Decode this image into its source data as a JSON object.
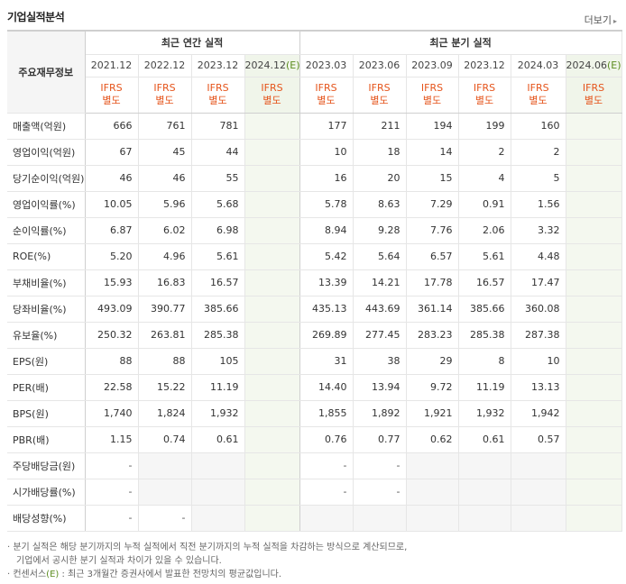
{
  "header": {
    "title": "기업실적분석",
    "more_label": "더보기"
  },
  "table": {
    "row_header": "주요재무정보",
    "annual_group": "최근 연간 실적",
    "quarter_group": "최근 분기 실적",
    "annual_periods": [
      "2021.12",
      "2022.12",
      "2023.12",
      "2024.12"
    ],
    "quarter_periods": [
      "2023.03",
      "2023.06",
      "2023.09",
      "2023.12",
      "2024.03",
      "2024.06"
    ],
    "estimate_mark": "(E)",
    "ifrs_top": "IFRS",
    "ifrs_bottom": "별도",
    "rows": [
      {
        "label": "매출액(억원)",
        "annual": [
          "666",
          "761",
          "781"
        ],
        "quarter": [
          "177",
          "211",
          "194",
          "199",
          "160"
        ]
      },
      {
        "label": "영업이익(억원)",
        "annual": [
          "67",
          "45",
          "44"
        ],
        "quarter": [
          "10",
          "18",
          "14",
          "2",
          "2"
        ]
      },
      {
        "label": "당기순이익(억원)",
        "annual": [
          "46",
          "46",
          "55"
        ],
        "quarter": [
          "16",
          "20",
          "15",
          "4",
          "5"
        ]
      },
      {
        "label": "영업이익률(%)",
        "annual": [
          "10.05",
          "5.96",
          "5.68"
        ],
        "quarter": [
          "5.78",
          "8.63",
          "7.29",
          "0.91",
          "1.56"
        ]
      },
      {
        "label": "순이익률(%)",
        "annual": [
          "6.87",
          "6.02",
          "6.98"
        ],
        "quarter": [
          "8.94",
          "9.28",
          "7.76",
          "2.06",
          "3.32"
        ]
      },
      {
        "label": "ROE(%)",
        "annual": [
          "5.20",
          "4.96",
          "5.61"
        ],
        "quarter": [
          "5.42",
          "5.64",
          "6.57",
          "5.61",
          "4.48"
        ]
      },
      {
        "label": "부채비율(%)",
        "annual": [
          "15.93",
          "16.83",
          "16.57"
        ],
        "quarter": [
          "13.39",
          "14.21",
          "17.78",
          "16.57",
          "17.47"
        ]
      },
      {
        "label": "당좌비율(%)",
        "annual": [
          "493.09",
          "390.77",
          "385.66"
        ],
        "quarter": [
          "435.13",
          "443.69",
          "361.14",
          "385.66",
          "360.08"
        ]
      },
      {
        "label": "유보율(%)",
        "annual": [
          "250.32",
          "263.81",
          "285.38"
        ],
        "quarter": [
          "269.89",
          "277.45",
          "283.23",
          "285.38",
          "287.38"
        ]
      },
      {
        "label": "EPS(원)",
        "annual": [
          "88",
          "88",
          "105"
        ],
        "quarter": [
          "31",
          "38",
          "29",
          "8",
          "10"
        ]
      },
      {
        "label": "PER(배)",
        "annual": [
          "22.58",
          "15.22",
          "11.19"
        ],
        "quarter": [
          "14.40",
          "13.94",
          "9.72",
          "11.19",
          "13.13"
        ]
      },
      {
        "label": "BPS(원)",
        "annual": [
          "1,740",
          "1,824",
          "1,932"
        ],
        "quarter": [
          "1,855",
          "1,892",
          "1,921",
          "1,932",
          "1,942"
        ]
      },
      {
        "label": "PBR(배)",
        "annual": [
          "1.15",
          "0.74",
          "0.61"
        ],
        "quarter": [
          "0.76",
          "0.77",
          "0.62",
          "0.61",
          "0.57"
        ]
      },
      {
        "label": "주당배당금(원)",
        "annual": [
          "-",
          "",
          ""
        ],
        "quarter": [
          "-",
          "-",
          "",
          "",
          ""
        ]
      },
      {
        "label": "시가배당률(%)",
        "annual": [
          "-",
          "",
          ""
        ],
        "quarter": [
          "-",
          "-",
          "",
          "",
          ""
        ]
      },
      {
        "label": "배당성향(%)",
        "annual": [
          "-",
          "-",
          ""
        ],
        "quarter": [
          "",
          "",
          "",
          "",
          ""
        ]
      }
    ]
  },
  "notes": {
    "line1": "· 분기 실적은 해당 분기까지의 누적 실적에서 직전 분기까지의 누적 실적을 차감하는 방식으로 계산되므로,",
    "line2": "기업에서 공시한 분기 실적과 차이가 있을 수 있습니다.",
    "line3_prefix": "· 컨센서스",
    "line3_mark": "(E)",
    "line3_suffix": " : 최근 3개월간 증권사에서 발표한 전망치의 평균값입니다."
  }
}
